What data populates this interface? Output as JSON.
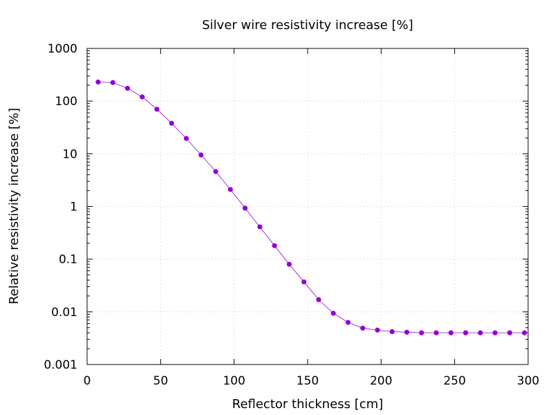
{
  "chart_data": {
    "type": "line",
    "title": "Silver wire resistivity increase [%]",
    "xlabel": "Reflector thickness [cm]",
    "ylabel": "Relative resistivity increase [%]",
    "xlim": [
      0,
      300
    ],
    "ylim": [
      0.001,
      1000
    ],
    "y_scale": "log",
    "grid": true,
    "x_ticks": [
      0,
      50,
      100,
      150,
      200,
      250,
      300
    ],
    "x_tick_labels": [
      "0",
      "50",
      "100",
      "150",
      "200",
      "250",
      "300"
    ],
    "y_ticks": [
      0.001,
      0.01,
      0.1,
      1,
      10,
      100,
      1000
    ],
    "y_tick_labels": [
      "0.001",
      "0.01",
      "0.1",
      "1",
      "10",
      "100",
      "1000"
    ],
    "series": [
      {
        "color": "#9400d3",
        "marker": "circle",
        "x": [
          7.5,
          17.5,
          27.5,
          37.5,
          47.5,
          57.5,
          67.5,
          77.5,
          87.5,
          97.5,
          107.5,
          117.5,
          127.5,
          137.5,
          147.5,
          157.5,
          167.5,
          177.5,
          187.5,
          197.5,
          207.5,
          217.5,
          227.5,
          237.5,
          247.5,
          257.5,
          267.5,
          277.5,
          287.5,
          297.5
        ],
        "y": [
          230,
          225,
          175,
          120,
          70,
          38,
          19.5,
          9.5,
          4.6,
          2.1,
          0.93,
          0.41,
          0.18,
          0.08,
          0.037,
          0.017,
          0.0094,
          0.0063,
          0.0049,
          0.0045,
          0.0042,
          0.0041,
          0.004,
          0.004,
          0.004,
          0.004,
          0.004,
          0.004,
          0.004,
          0.004
        ]
      }
    ]
  }
}
